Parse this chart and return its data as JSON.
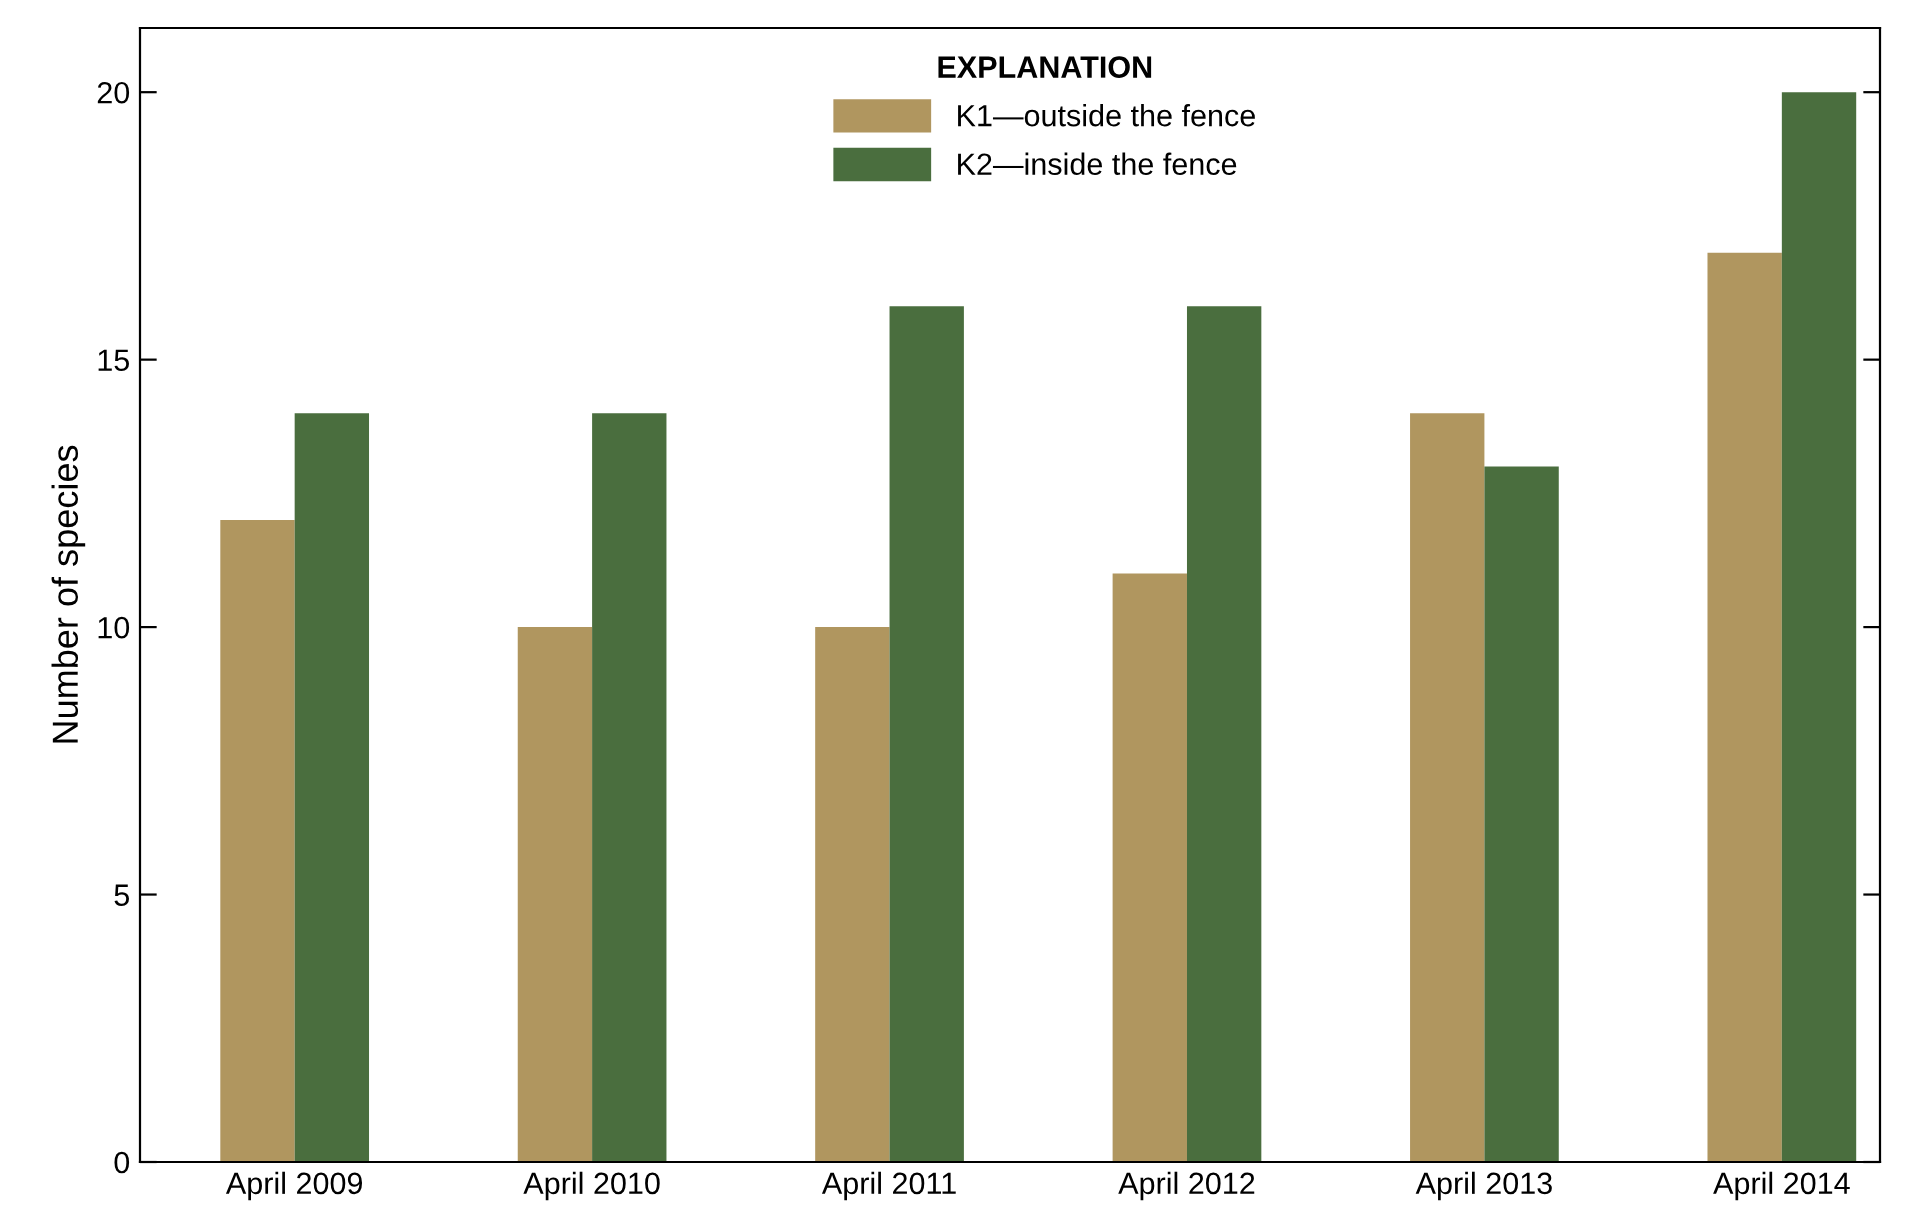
{
  "chart_data": {
    "type": "bar",
    "ylabel": "Number of species",
    "legend_title": "EXPLANATION",
    "legend": "top",
    "categories": [
      "April 2009",
      "April 2010",
      "April 2011",
      "April 2012",
      "April 2013",
      "April 2014"
    ],
    "series": [
      {
        "name": "K1—outside the fence",
        "color": "#b0965f",
        "values": [
          12,
          10,
          10,
          11,
          14,
          17
        ]
      },
      {
        "name": "K2—inside the fence",
        "color": "#4a6e3e",
        "values": [
          14,
          14,
          16,
          16,
          13,
          20
        ]
      }
    ],
    "ylim": [
      0,
      21.2
    ],
    "yticks": [
      0,
      5,
      10,
      15,
      20
    ],
    "grid": false
  }
}
